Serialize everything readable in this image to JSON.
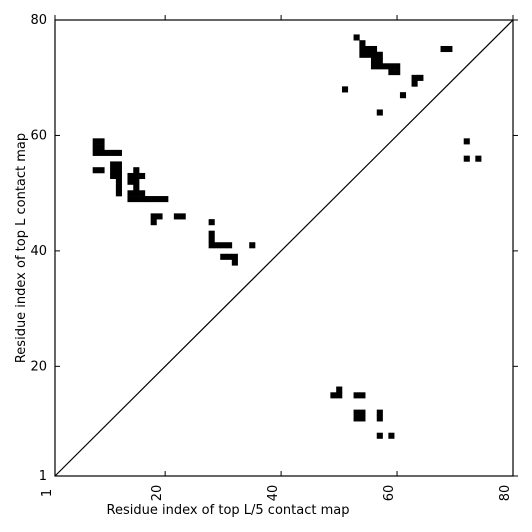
{
  "chart_data": {
    "type": "heatmap",
    "title": "",
    "xlabel": "Residue index of top L/5 contact map",
    "ylabel": "Residue index of top L contact map",
    "xlim": [
      1,
      80
    ],
    "ylim": [
      1,
      80
    ],
    "xticks": [
      1,
      20,
      40,
      60,
      80
    ],
    "yticks": [
      1,
      20,
      40,
      60,
      80
    ],
    "xtick_rotation": -90,
    "grid": false,
    "colors": {
      "contact": "#000000",
      "diagonal": "#000000",
      "background": "#ffffff"
    },
    "diagonal": {
      "from": [
        1,
        1
      ],
      "to": [
        80,
        80
      ]
    },
    "upper_contacts": [
      [
        8,
        59
      ],
      [
        9,
        59
      ],
      [
        8,
        58
      ],
      [
        9,
        58
      ],
      [
        8,
        57
      ],
      [
        9,
        57
      ],
      [
        10,
        57
      ],
      [
        11,
        57
      ],
      [
        12,
        57
      ],
      [
        8,
        54
      ],
      [
        9,
        54
      ],
      [
        11,
        55
      ],
      [
        12,
        55
      ],
      [
        11,
        54
      ],
      [
        12,
        54
      ],
      [
        11,
        53
      ],
      [
        12,
        53
      ],
      [
        12,
        52
      ],
      [
        12,
        51
      ],
      [
        12,
        50
      ],
      [
        15,
        54
      ],
      [
        14,
        53
      ],
      [
        15,
        53
      ],
      [
        16,
        53
      ],
      [
        14,
        52
      ],
      [
        15,
        52
      ],
      [
        15,
        51
      ],
      [
        14,
        50
      ],
      [
        15,
        50
      ],
      [
        16,
        50
      ],
      [
        14,
        49
      ],
      [
        15,
        49
      ],
      [
        16,
        49
      ],
      [
        17,
        49
      ],
      [
        18,
        49
      ],
      [
        19,
        49
      ],
      [
        20,
        49
      ],
      [
        18,
        46
      ],
      [
        19,
        46
      ],
      [
        18,
        45
      ],
      [
        22,
        46
      ],
      [
        23,
        46
      ],
      [
        28,
        45
      ],
      [
        28,
        43
      ],
      [
        28,
        42
      ],
      [
        28,
        41
      ],
      [
        29,
        41
      ],
      [
        30,
        41
      ],
      [
        31,
        41
      ],
      [
        30,
        39
      ],
      [
        31,
        39
      ],
      [
        32,
        39
      ],
      [
        32,
        38
      ],
      [
        35,
        41
      ],
      [
        53,
        77
      ],
      [
        54,
        76
      ],
      [
        54,
        75
      ],
      [
        55,
        75
      ],
      [
        56,
        75
      ],
      [
        54,
        74
      ],
      [
        55,
        74
      ],
      [
        56,
        74
      ],
      [
        57,
        74
      ],
      [
        56,
        73
      ],
      [
        57,
        73
      ],
      [
        56,
        72
      ],
      [
        57,
        72
      ],
      [
        58,
        72
      ],
      [
        59,
        72
      ],
      [
        60,
        72
      ],
      [
        59,
        71
      ],
      [
        60,
        71
      ],
      [
        51,
        68
      ],
      [
        68,
        75
      ],
      [
        69,
        75
      ],
      [
        63,
        70
      ],
      [
        64,
        70
      ],
      [
        63,
        69
      ],
      [
        61,
        67
      ],
      [
        57,
        64
      ]
    ],
    "lower_contacts": [
      [
        72,
        59
      ],
      [
        72,
        56
      ],
      [
        74,
        56
      ],
      [
        50,
        16
      ],
      [
        49,
        15
      ],
      [
        50,
        15
      ],
      [
        53,
        15
      ],
      [
        54,
        15
      ],
      [
        53,
        12
      ],
      [
        54,
        12
      ],
      [
        53,
        11
      ],
      [
        54,
        11
      ],
      [
        57,
        12
      ],
      [
        57,
        11
      ],
      [
        57,
        8
      ],
      [
        59,
        8
      ]
    ]
  }
}
